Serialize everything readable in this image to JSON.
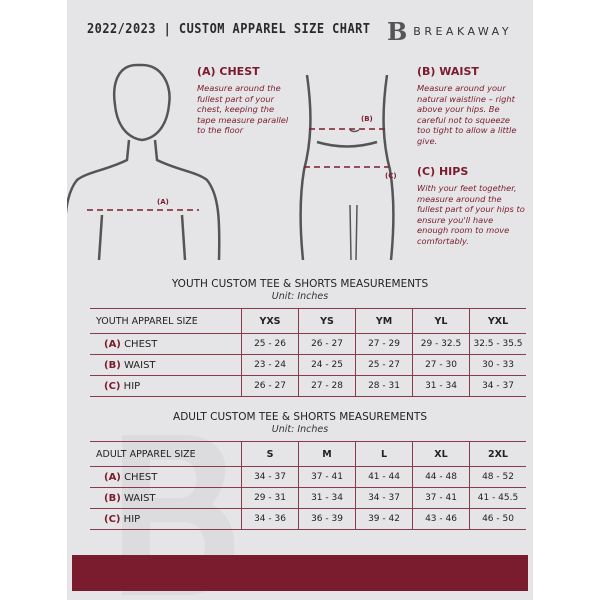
{
  "header": {
    "title": "2022/2023  |  CUSTOM APPAREL SIZE CHART",
    "brand": "BREAKAWAY",
    "logo_letter": "B"
  },
  "measures": {
    "chest": {
      "title": "(A) CHEST",
      "desc": "Measure around the fullest part of your chest, keeping the tape measure parallel to the floor",
      "marker": "(A)"
    },
    "waist": {
      "title": "(B) WAIST",
      "desc": "Measure around your natural waistline – right above your hips. Be careful not to squeeze too tight to allow a little give.",
      "marker": "(B)"
    },
    "hips": {
      "title": "(C) HIPS",
      "desc": "With your feet together, measure around the fullest part of your hips to ensure you'll have enough room to move comfortably.",
      "marker": "(C)"
    }
  },
  "youth": {
    "title": "YOUTH CUSTOM TEE & SHORTS MEASUREMENTS",
    "unit": "Unit: Inches",
    "header": [
      "YOUTH APPAREL SIZE",
      "YXS",
      "YS",
      "YM",
      "YL",
      "YXL"
    ],
    "rows": [
      {
        "tag": "(A)",
        "label": "CHEST",
        "values": [
          "25 - 26",
          "26 - 27",
          "27 - 29",
          "29 - 32.5",
          "32.5 - 35.5"
        ]
      },
      {
        "tag": "(B)",
        "label": "WAIST",
        "values": [
          "23 - 24",
          "24 - 25",
          "25 - 27",
          "27 - 30",
          "30 - 33"
        ]
      },
      {
        "tag": "(C)",
        "label": "HIP",
        "values": [
          "26 - 27",
          "27 - 28",
          "28 - 31",
          "31 - 34",
          "34 - 37"
        ]
      }
    ]
  },
  "adult": {
    "title": "ADULT CUSTOM TEE & SHORTS MEASUREMENTS",
    "unit": "Unit: Inches",
    "header": [
      "ADULT APPAREL SIZE",
      "S",
      "M",
      "L",
      "XL",
      "2XL"
    ],
    "rows": [
      {
        "tag": "(A)",
        "label": "CHEST",
        "values": [
          "34 - 37",
          "37 - 41",
          "41 - 44",
          "44 - 48",
          "48 - 52"
        ]
      },
      {
        "tag": "(B)",
        "label": "WAIST",
        "values": [
          "29 - 31",
          "31 - 34",
          "34 - 37",
          "37 - 41",
          "41 - 45.5"
        ]
      },
      {
        "tag": "(C)",
        "label": "HIP",
        "values": [
          "34 - 36",
          "36 - 39",
          "39 - 42",
          "43 - 46",
          "46 - 50"
        ]
      }
    ]
  },
  "colors": {
    "accent": "#7a1c2e",
    "background": "#e5e5e7"
  }
}
